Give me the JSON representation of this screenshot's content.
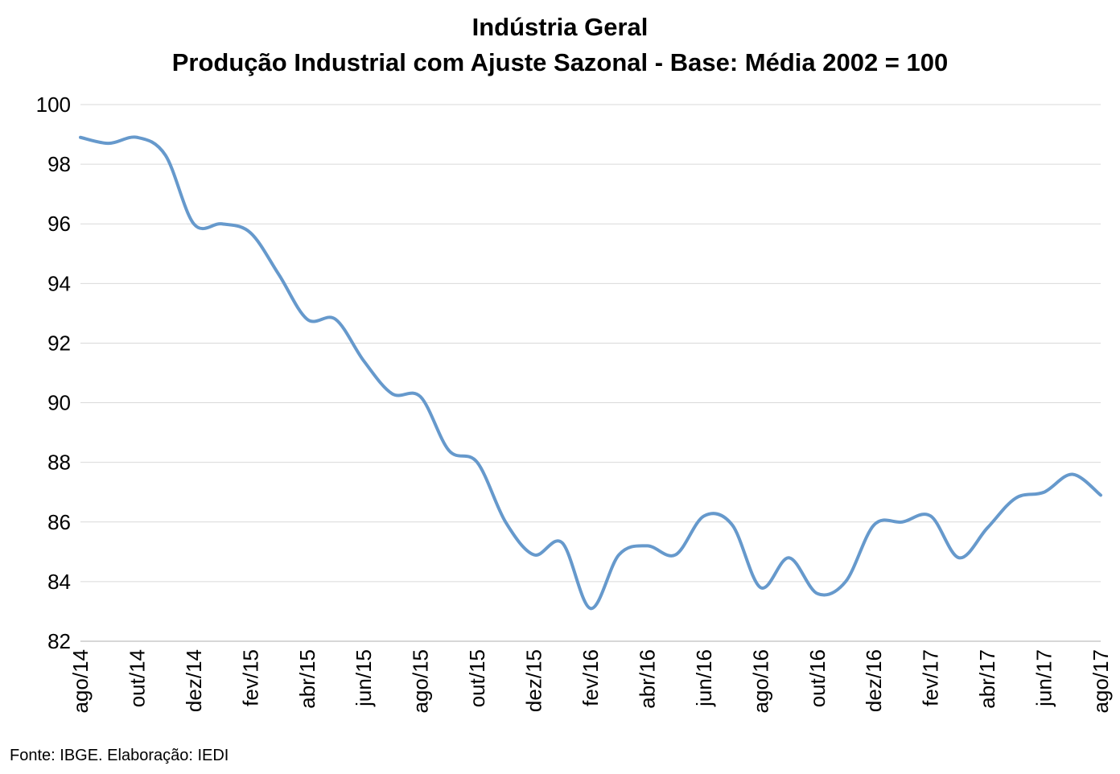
{
  "chart_data": {
    "type": "line",
    "title": "Indústria Geral",
    "subtitle": "Produção Industrial com Ajuste Sazonal - Base: Média 2002 = 100",
    "xlabel": "",
    "ylabel": "",
    "ylim": [
      82,
      100
    ],
    "yticks": [
      "100",
      "98",
      "96",
      "94",
      "92",
      "90",
      "88",
      "86",
      "84",
      "82"
    ],
    "xtick_labels": [
      "ago/14",
      "out/14",
      "dez/14",
      "fev/15",
      "abr/15",
      "jun/15",
      "ago/15",
      "out/15",
      "dez/15",
      "fev/16",
      "abr/16",
      "jun/16",
      "ago/16",
      "out/16",
      "dez/16",
      "fev/17",
      "abr/17",
      "jun/17",
      "ago/17"
    ],
    "grid": true,
    "legend": "none",
    "series": [
      {
        "color": "#6699cc",
        "x": [
          "ago/14",
          "set/14",
          "out/14",
          "nov/14",
          "dez/14",
          "jan/15",
          "fev/15",
          "mar/15",
          "abr/15",
          "mai/15",
          "jun/15",
          "jul/15",
          "ago/15",
          "set/15",
          "out/15",
          "nov/15",
          "dez/15",
          "jan/16",
          "fev/16",
          "mar/16",
          "abr/16",
          "mai/16",
          "jun/16",
          "jul/16",
          "ago/16",
          "set/16",
          "out/16",
          "nov/16",
          "dez/16",
          "jan/17",
          "fev/17",
          "mar/17",
          "abr/17",
          "mai/17",
          "jun/17",
          "jul/17",
          "ago/17"
        ],
        "values": [
          98.9,
          98.7,
          98.9,
          98.3,
          96.0,
          96.0,
          95.7,
          94.3,
          92.8,
          92.8,
          91.4,
          90.3,
          90.2,
          88.4,
          88.0,
          86.0,
          84.9,
          85.3,
          83.1,
          84.9,
          85.2,
          84.9,
          86.2,
          85.9,
          83.8,
          84.8,
          83.6,
          84.0,
          85.9,
          86.0,
          86.2,
          84.8,
          85.8,
          86.8,
          87.0,
          87.6,
          86.9
        ]
      }
    ]
  },
  "source": "Fonte: IBGE. Elaboração: IEDI"
}
